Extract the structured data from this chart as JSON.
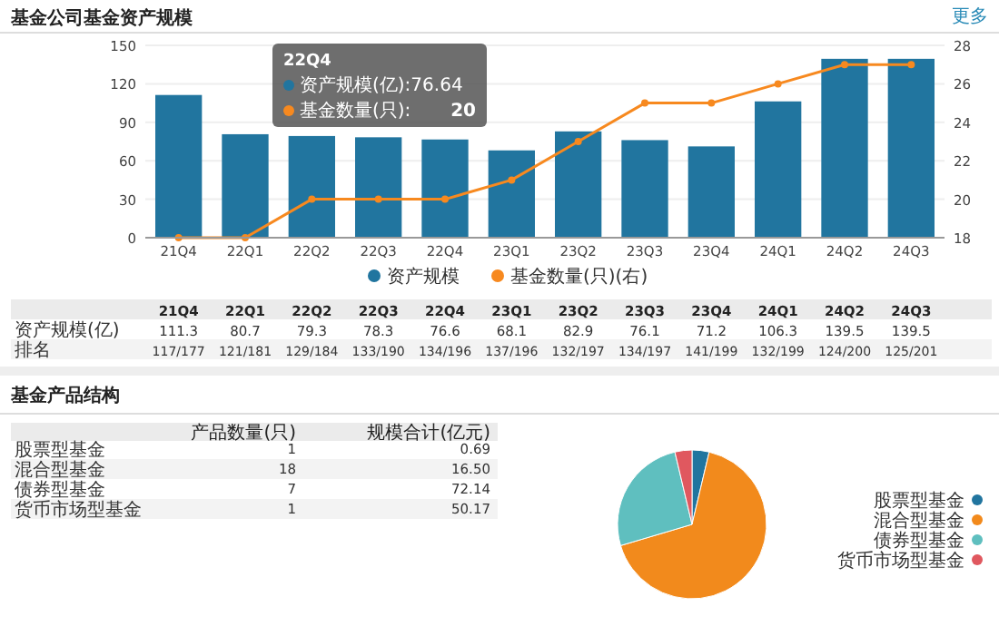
{
  "chart_data": [
    {
      "type": "bar",
      "title": "基金公司基金资产规模",
      "categories": [
        "21Q4",
        "22Q1",
        "22Q2",
        "22Q3",
        "22Q4",
        "23Q1",
        "23Q2",
        "23Q3",
        "23Q4",
        "24Q1",
        "24Q2",
        "24Q3"
      ],
      "series": [
        {
          "name": "资产规模",
          "type": "bar",
          "color": "#21759f",
          "values": [
            111.3,
            80.7,
            79.3,
            78.3,
            76.6,
            68.1,
            82.9,
            76.1,
            71.2,
            106.3,
            139.5,
            139.5
          ],
          "value_labels": [
            "111.3",
            "80.7",
            "79.3",
            "78.3",
            "76.6",
            "68.1",
            "82.9",
            "76.1",
            "71.2",
            "106.3",
            "139.5",
            "139.5"
          ]
        },
        {
          "name": "基金数量(只)(右)",
          "type": "line",
          "axis": "y2",
          "color": "#f7891f",
          "marker": "circle",
          "values": [
            18,
            18,
            20,
            20,
            20,
            21,
            23,
            25,
            25,
            26,
            27,
            27
          ]
        }
      ],
      "ylim": [
        0,
        150
      ],
      "yticks": [
        0,
        30,
        60,
        90,
        120,
        150
      ],
      "y2lim": [
        18,
        28
      ],
      "y2ticks": [
        18,
        20,
        22,
        24,
        26,
        28
      ],
      "grid": "y",
      "legend": "bottom",
      "annotations": [
        "更多",
        "资产规模(亿)",
        "排名",
        "117/177",
        "121/181",
        "129/184",
        "133/190",
        "134/196",
        "137/196",
        "132/197",
        "134/197",
        "141/199",
        "132/199",
        "124/200",
        "125/201",
        "22Q4",
        "资产规模(亿):76.64",
        "基金数量(只):",
        "20"
      ]
    },
    {
      "type": "pie",
      "categories": [
        "股票型基金",
        "混合型基金",
        "债券型基金",
        "货币市场型基金"
      ],
      "values": [
        3.7,
        66.7,
        25.9,
        3.7
      ],
      "colors": [
        "#21759f",
        "#f28a1c",
        "#5fbfbf",
        "#e0585f"
      ],
      "legend": "right",
      "annotations": [
        "产品数量(只)",
        "规模合计(亿元)",
        "0.69",
        "16.50",
        "72.14",
        "50.17",
        "1",
        "18",
        "7",
        "1",
        "基金产品结构"
      ]
    }
  ]
}
